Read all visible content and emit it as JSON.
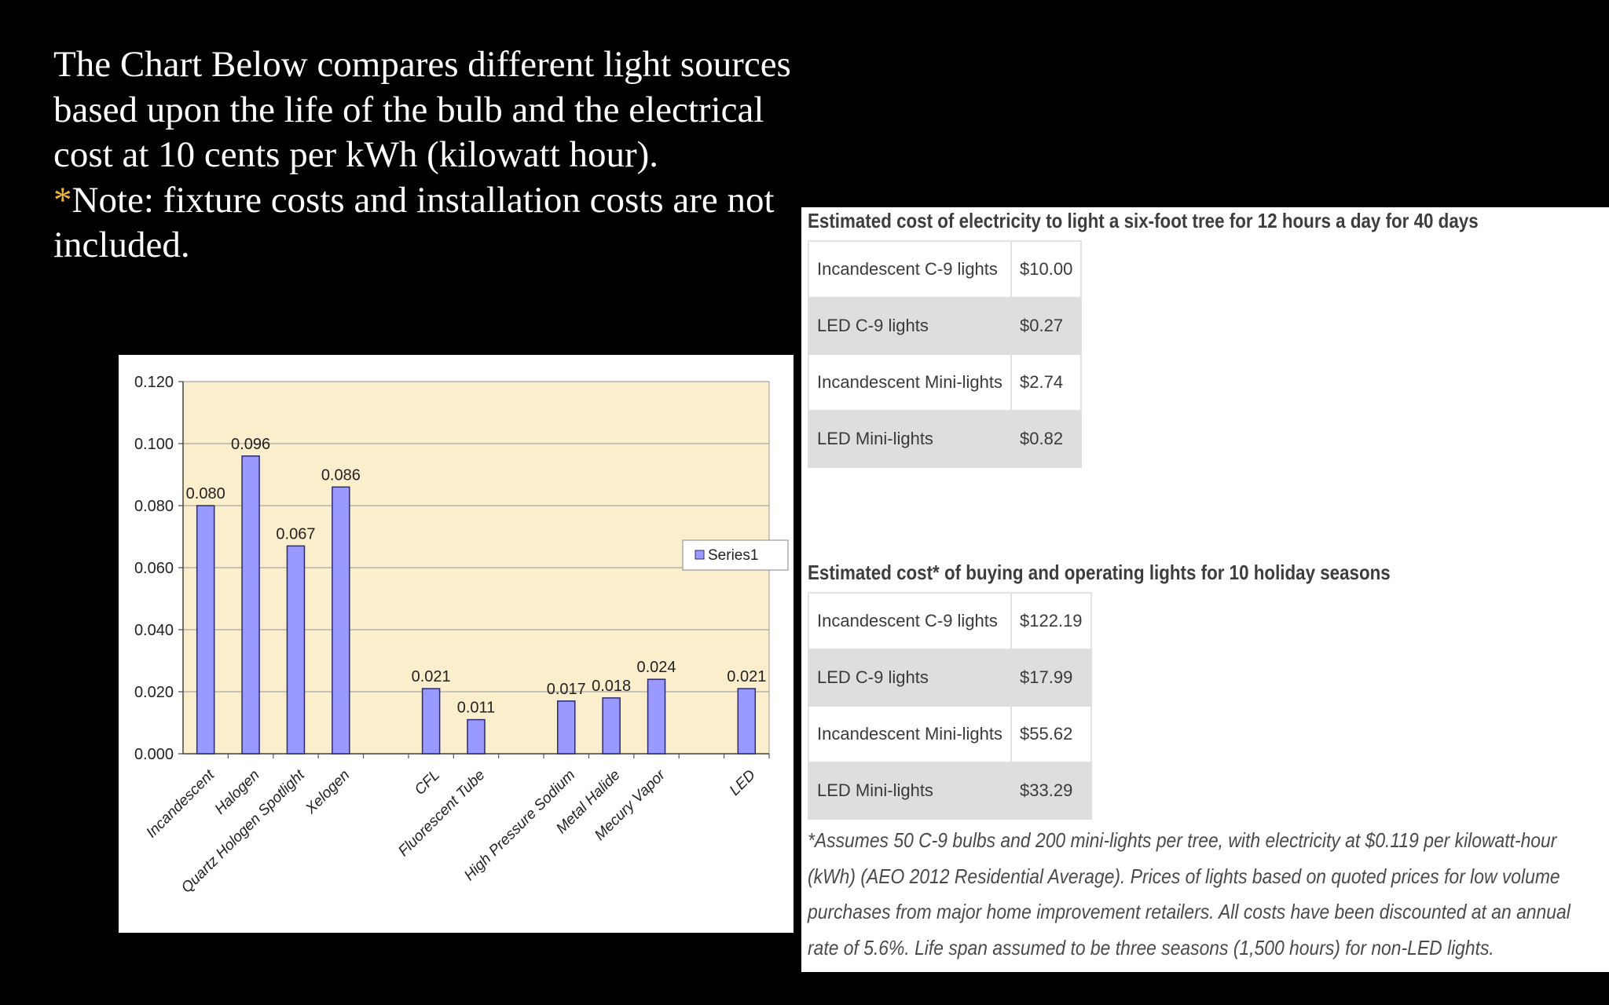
{
  "intro": {
    "line1": "The Chart Below compares different light sources based upon the life of the bulb and the electrical cost at 10 cents per kWh (kilowatt hour).",
    "note_star": "*",
    "note_text": "Note: fixture costs and installation costs are not included."
  },
  "chart_data": {
    "type": "bar",
    "categories": [
      "Incandescent",
      "Halogen",
      "Quartz Hologen Spotlight",
      "Xelogen",
      "",
      "CFL",
      "Fluorescent Tube",
      "",
      "High Pressure Sodium",
      "Metal Halide",
      "Mecury Vapor",
      "",
      "LED"
    ],
    "series": [
      {
        "name": "Series1",
        "values": [
          0.08,
          0.096,
          0.067,
          0.086,
          null,
          0.021,
          0.011,
          null,
          0.017,
          0.018,
          0.024,
          null,
          0.021
        ]
      }
    ],
    "data_labels": [
      "0.080",
      "0.096",
      "0.067",
      "0.086",
      "",
      "0.021",
      "0.011",
      "",
      "0.017",
      "0.018",
      "0.024",
      "",
      "0.021"
    ],
    "yticks": [
      "0.000",
      "0.020",
      "0.040",
      "0.060",
      "0.080",
      "0.100",
      "0.120"
    ],
    "ylim": [
      0,
      0.12
    ],
    "grid": true,
    "legend": "right",
    "colors": {
      "bar": "#9999ff",
      "bar_edge": "#2b2b6b",
      "plot_bg": "#fbeecd"
    }
  },
  "tables": [
    {
      "title": "Estimated cost of electricity to light a six-foot tree for 12 hours a day for 40 days",
      "rows": [
        {
          "name": "Incandescent C-9 lights",
          "value": "$10.00"
        },
        {
          "name": "LED C-9 lights",
          "value": "$0.27"
        },
        {
          "name": "Incandescent Mini-lights",
          "value": "$2.74"
        },
        {
          "name": "LED Mini-lights",
          "value": "$0.82"
        }
      ]
    },
    {
      "title": "Estimated cost* of buying and operating lights for 10 holiday seasons",
      "rows": [
        {
          "name": "Incandescent C-9 lights",
          "value": "$122.19"
        },
        {
          "name": "LED C-9 lights",
          "value": "$17.99"
        },
        {
          "name": "Incandescent Mini-lights",
          "value": "$55.62"
        },
        {
          "name": "LED Mini-lights",
          "value": "$33.29"
        }
      ]
    }
  ],
  "footnote": "*Assumes 50 C-9 bulbs and 200 mini-lights per tree, with electricity at $0.119 per kilowatt-hour (kWh) (AEO 2012 Residential Average). Prices of lights based on quoted prices for low volume purchases from major home improvement retailers. All costs have been discounted at an annual rate of 5.6%. Life span assumed to be three seasons (1,500 hours) for non-LED lights."
}
